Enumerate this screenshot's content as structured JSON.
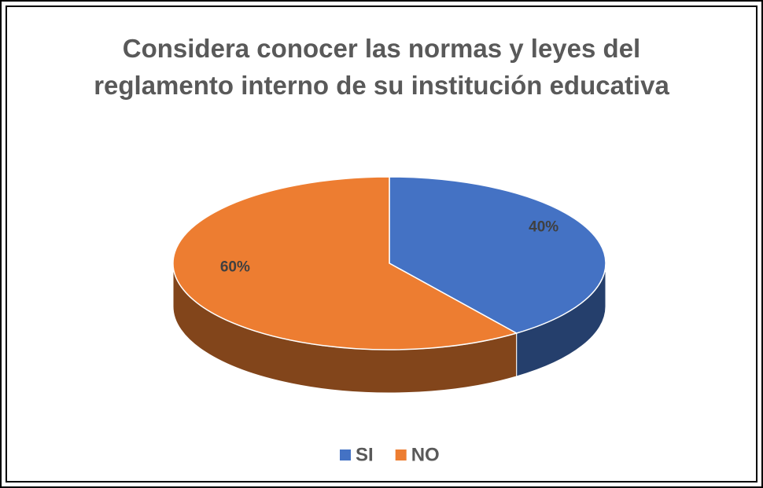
{
  "chart_data": {
    "type": "pie",
    "title": "Considera conocer las normas y leyes del reglamento interno de su institución educativa",
    "categories": [
      "SI",
      "NO"
    ],
    "values": [
      40,
      60
    ],
    "value_labels": [
      "40%",
      "60%"
    ],
    "colors": [
      "#4472c4",
      "#ed7d31"
    ],
    "legend": "bottom"
  }
}
